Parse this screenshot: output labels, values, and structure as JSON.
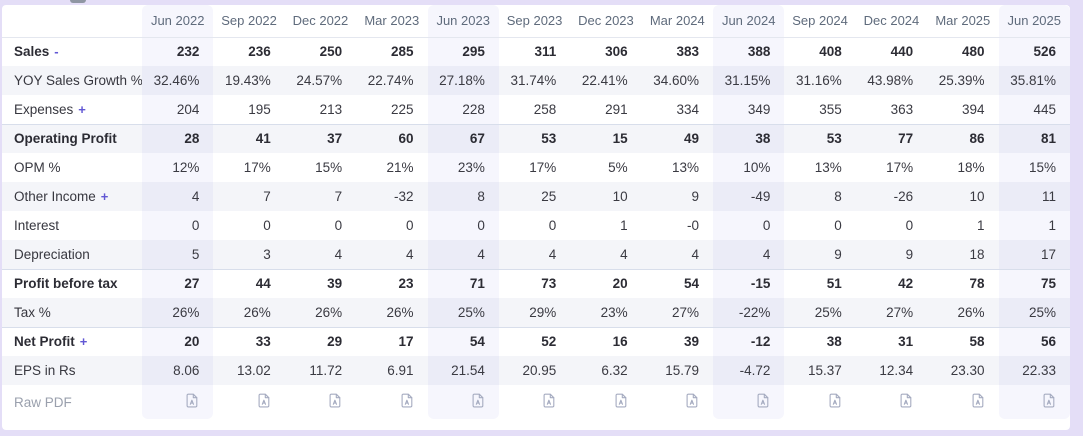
{
  "page": {
    "background_color": "#e4def7",
    "card_background": "#ffffff",
    "accent_link_color": "#6157d4",
    "stripe_color": "#f4f5f9",
    "section_border_color": "#d8deeb",
    "header_text_color": "#5f6b7c",
    "pdf_icon_color": "#a5abc0"
  },
  "table": {
    "columns": [
      "Jun 2022",
      "Sep 2022",
      "Dec 2022",
      "Mar 2023",
      "Jun 2023",
      "Sep 2023",
      "Dec 2023",
      "Mar 2024",
      "Jun 2024",
      "Sep 2024",
      "Dec 2024",
      "Mar 2025",
      "Jun 2025"
    ],
    "highlight_indexes": [
      0,
      4,
      8,
      12
    ],
    "rows": [
      {
        "label": "Sales",
        "link": "-",
        "bold": true,
        "values": [
          "232",
          "236",
          "250",
          "285",
          "295",
          "311",
          "306",
          "383",
          "388",
          "408",
          "440",
          "480",
          "526"
        ]
      },
      {
        "label": "YOY Sales Growth %",
        "values": [
          "32.46%",
          "19.43%",
          "24.57%",
          "22.74%",
          "27.18%",
          "31.74%",
          "22.41%",
          "34.60%",
          "31.15%",
          "31.16%",
          "43.98%",
          "25.39%",
          "35.81%"
        ]
      },
      {
        "label": "Expenses",
        "link": "+",
        "values": [
          "204",
          "195",
          "213",
          "225",
          "228",
          "258",
          "291",
          "334",
          "349",
          "355",
          "363",
          "394",
          "445"
        ]
      },
      {
        "label": "Operating Profit",
        "bold": true,
        "section": true,
        "values": [
          "28",
          "41",
          "37",
          "60",
          "67",
          "53",
          "15",
          "49",
          "38",
          "53",
          "77",
          "86",
          "81"
        ]
      },
      {
        "label": "OPM %",
        "values": [
          "12%",
          "17%",
          "15%",
          "21%",
          "23%",
          "17%",
          "5%",
          "13%",
          "10%",
          "13%",
          "17%",
          "18%",
          "15%"
        ]
      },
      {
        "label": "Other Income",
        "link": "+",
        "values": [
          "4",
          "7",
          "7",
          "-32",
          "8",
          "25",
          "10",
          "9",
          "-49",
          "8",
          "-26",
          "10",
          "11"
        ]
      },
      {
        "label": "Interest",
        "values": [
          "0",
          "0",
          "0",
          "0",
          "0",
          "0",
          "1",
          "-0",
          "0",
          "0",
          "0",
          "1",
          "1"
        ]
      },
      {
        "label": "Depreciation",
        "values": [
          "5",
          "3",
          "4",
          "4",
          "4",
          "4",
          "4",
          "4",
          "4",
          "9",
          "9",
          "18",
          "17"
        ]
      },
      {
        "label": "Profit before tax",
        "bold": true,
        "section": true,
        "values": [
          "27",
          "44",
          "39",
          "23",
          "71",
          "73",
          "20",
          "54",
          "-15",
          "51",
          "42",
          "78",
          "75"
        ]
      },
      {
        "label": "Tax %",
        "values": [
          "26%",
          "26%",
          "26%",
          "26%",
          "25%",
          "29%",
          "23%",
          "27%",
          "-22%",
          "25%",
          "27%",
          "26%",
          "25%"
        ]
      },
      {
        "label": "Net Profit",
        "link": "+",
        "bold": true,
        "section": true,
        "values": [
          "20",
          "33",
          "29",
          "17",
          "54",
          "52",
          "16",
          "39",
          "-12",
          "38",
          "31",
          "58",
          "56"
        ]
      },
      {
        "label": "EPS in Rs",
        "values": [
          "8.06",
          "13.02",
          "11.72",
          "6.91",
          "21.54",
          "20.95",
          "6.32",
          "15.79",
          "-4.72",
          "15.37",
          "12.34",
          "23.30",
          "22.33"
        ]
      },
      {
        "label": "Raw PDF",
        "type": "pdf",
        "icon": "pdf-file-icon"
      }
    ]
  }
}
